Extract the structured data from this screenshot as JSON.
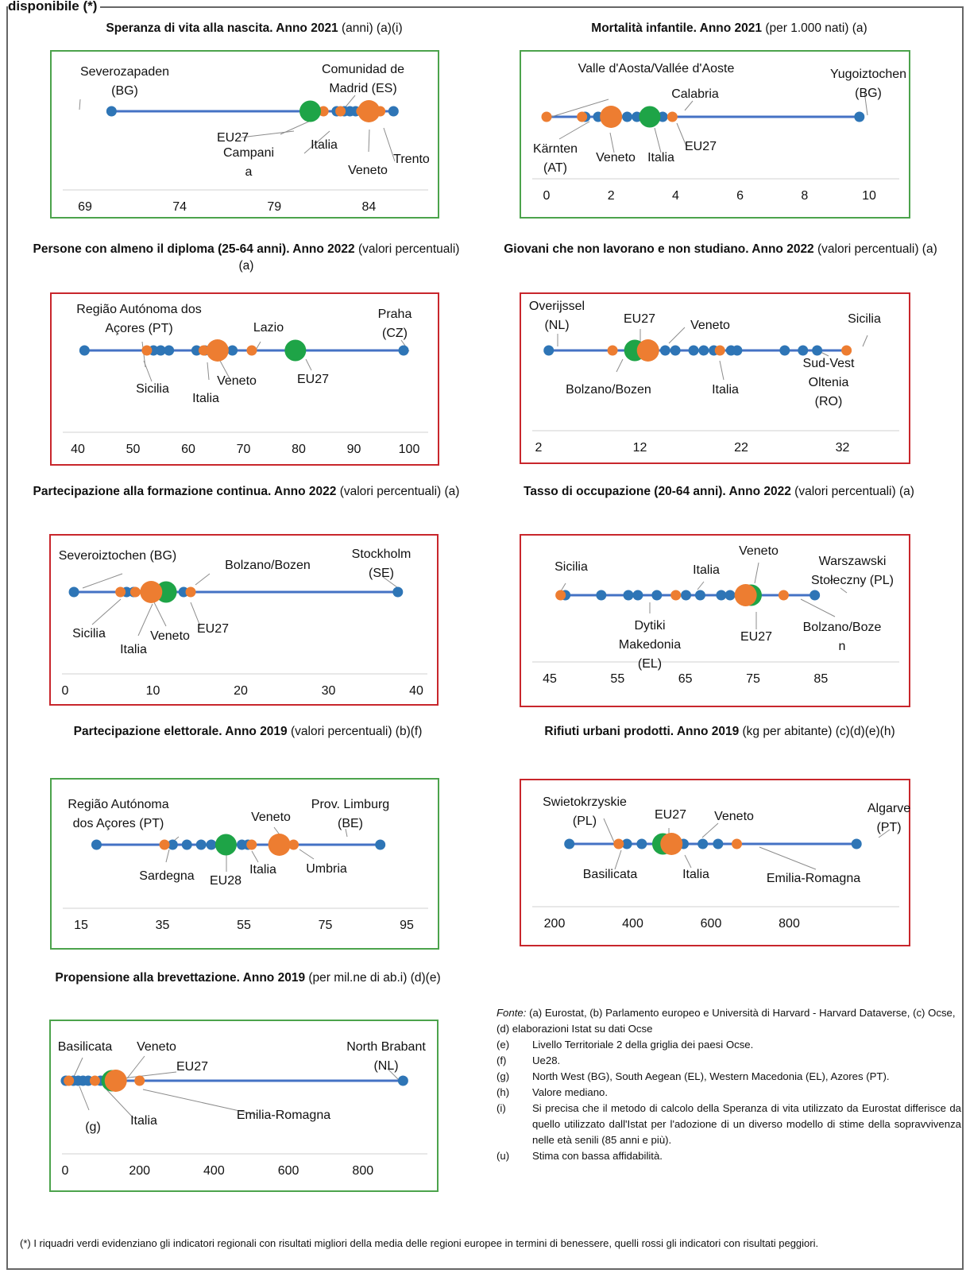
{
  "page": {
    "header": "disponibile (*)",
    "footnote": "(*) I riquadri verdi evidenziano gli indicatori regionali con risultati migliori della media delle regioni europee in termini di benessere, quelli rossi gli indicatori con risultati peggiori."
  },
  "sources": {
    "intro_label": "Fonte:",
    "intro": "(a) Eurostat, (b) Parlamento europeo e Università di Harvard - Harvard Dataverse, (c) Ocse, (d) elaborazioni Istat su dati Ocse",
    "notes": [
      {
        "key": "(e)",
        "text": "Livello Territoriale 2 della griglia dei paesi Ocse."
      },
      {
        "key": "(f)",
        "text": "Ue28."
      },
      {
        "key": "(g)",
        "text": "North West (BG), South Aegean (EL), Western Macedonia (EL), Azores (PT)."
      },
      {
        "key": "(h)",
        "text": "Valore mediano."
      },
      {
        "key": "(i)",
        "text": "Si precisa che il metodo di calcolo della Speranza di vita utilizzato da Eurostat differisce da quello utilizzato dall'Istat per l'adozione di un diverso modello di stime della sopravvivenza nelle età senili (85 anni e più)."
      },
      {
        "key": "(u)",
        "text": "Stima con bassa affidabilità."
      }
    ]
  },
  "colors": {
    "line": "#4472c4",
    "region": "#2e75b6",
    "italy": "#ed7d31",
    "eu": "#1ea447",
    "good_box": "#4ca34c",
    "bad_box": "#c8262c"
  },
  "chart_data": [
    {
      "type": "scatter",
      "title": "Speranza di vita alla nascita. Anno 2021",
      "subtitle": "(anni) (a)(i)",
      "box": "good",
      "xlim": [
        69,
        86
      ],
      "ticks": [
        69,
        74,
        79,
        84
      ],
      "points": [
        {
          "x": 70.4,
          "cat": "region"
        },
        {
          "x": 82.3,
          "cat": "region"
        },
        {
          "x": 82.7,
          "cat": "region"
        },
        {
          "x": 83.0,
          "cat": "region"
        },
        {
          "x": 83.3,
          "cat": "region"
        },
        {
          "x": 83.9,
          "cat": "region"
        },
        {
          "x": 85.3,
          "cat": "region"
        },
        {
          "x": 81.6,
          "cat": "italy"
        },
        {
          "x": 82.5,
          "cat": "italy"
        },
        {
          "x": 83.6,
          "cat": "italy"
        },
        {
          "x": 84.3,
          "cat": "italy"
        },
        {
          "x": 84.6,
          "cat": "italy"
        },
        {
          "x": 84.0,
          "cat": "italy_big"
        },
        {
          "x": 80.9,
          "cat": "eu"
        }
      ],
      "labels": [
        "Severozapaden\n(BG)",
        "Comunidad de\nMadrid (ES)",
        "EU27",
        "Campani\na",
        "Italia",
        "Veneto",
        "Trento"
      ]
    },
    {
      "type": "scatter",
      "title": "Mortalità infantile. Anno 2021",
      "subtitle": "(per 1.000 nati) (a)",
      "box": "good",
      "xlim": [
        0,
        10
      ],
      "ticks": [
        0,
        2,
        4,
        6,
        8,
        10
      ],
      "points": [
        {
          "x": 1.2,
          "cat": "region"
        },
        {
          "x": 1.6,
          "cat": "region"
        },
        {
          "x": 2.5,
          "cat": "region"
        },
        {
          "x": 2.8,
          "cat": "region"
        },
        {
          "x": 3.6,
          "cat": "region"
        },
        {
          "x": 9.7,
          "cat": "region"
        },
        {
          "x": 0.0,
          "cat": "italy"
        },
        {
          "x": 1.1,
          "cat": "italy"
        },
        {
          "x": 3.9,
          "cat": "italy"
        },
        {
          "x": 2.0,
          "cat": "italy_big"
        },
        {
          "x": 3.2,
          "cat": "eu"
        }
      ],
      "labels": [
        "Valle d'Aosta/Vallée d'Aoste",
        "Yugoiztochen\n(BG)",
        "Calabria",
        "Kärnten\n(AT)",
        "Veneto",
        "Italia",
        "EU27"
      ]
    },
    {
      "type": "scatter",
      "title": "Persone con almeno il diploma (25-64 anni). Anno 2022",
      "subtitle": "(valori percentuali) (a)",
      "box": "bad",
      "xlim": [
        40,
        100
      ],
      "ticks": [
        40,
        50,
        60,
        70,
        80,
        90,
        100
      ],
      "points": [
        {
          "x": 41.2,
          "cat": "region"
        },
        {
          "x": 53.7,
          "cat": "region"
        },
        {
          "x": 55.0,
          "cat": "region"
        },
        {
          "x": 56.5,
          "cat": "region"
        },
        {
          "x": 61.5,
          "cat": "region"
        },
        {
          "x": 63.0,
          "cat": "region"
        },
        {
          "x": 68.0,
          "cat": "region"
        },
        {
          "x": 99.0,
          "cat": "region"
        },
        {
          "x": 52.5,
          "cat": "italy"
        },
        {
          "x": 62.8,
          "cat": "italy"
        },
        {
          "x": 71.5,
          "cat": "italy"
        },
        {
          "x": 65.3,
          "cat": "italy_big"
        },
        {
          "x": 79.4,
          "cat": "eu"
        }
      ],
      "labels": [
        "Região Autónoma dos\nAçores (PT)",
        "Lazio",
        "Praha\n(CZ)",
        "Sicilia",
        "Veneto",
        "Italia",
        "EU27"
      ]
    },
    {
      "type": "scatter",
      "title": "Giovani che non lavorano e non studiano. Anno 2022",
      "subtitle": "(valori percentuali) (a)",
      "box": "bad",
      "xlim": [
        2,
        34
      ],
      "ticks": [
        2,
        12,
        22,
        32
      ],
      "points": [
        {
          "x": 3.0,
          "cat": "region"
        },
        {
          "x": 14.5,
          "cat": "region"
        },
        {
          "x": 15.5,
          "cat": "region"
        },
        {
          "x": 17.3,
          "cat": "region"
        },
        {
          "x": 18.3,
          "cat": "region"
        },
        {
          "x": 19.3,
          "cat": "region"
        },
        {
          "x": 21.0,
          "cat": "region"
        },
        {
          "x": 21.6,
          "cat": "region"
        },
        {
          "x": 26.3,
          "cat": "region"
        },
        {
          "x": 28.1,
          "cat": "region"
        },
        {
          "x": 29.5,
          "cat": "region"
        },
        {
          "x": 9.3,
          "cat": "italy"
        },
        {
          "x": 19.9,
          "cat": "italy"
        },
        {
          "x": 32.4,
          "cat": "italy"
        },
        {
          "x": 12.8,
          "cat": "italy_big"
        },
        {
          "x": 11.5,
          "cat": "eu"
        }
      ],
      "labels": [
        "Overijssel\n(NL)",
        "EU27",
        "Veneto",
        "Sicilia",
        "Sud-Vest\nOltenia\n(RO)",
        "Bolzano/Bozen",
        "Italia"
      ]
    },
    {
      "type": "scatter",
      "title": "Partecipazione alla formazione continua. Anno 2022",
      "subtitle": "(valori percentuali) (a)",
      "box": "bad",
      "xlim": [
        0,
        40
      ],
      "ticks": [
        0,
        10,
        20,
        30,
        40
      ],
      "points": [
        {
          "x": 1.0,
          "cat": "region"
        },
        {
          "x": 7.0,
          "cat": "region"
        },
        {
          "x": 7.8,
          "cat": "region"
        },
        {
          "x": 13.5,
          "cat": "region"
        },
        {
          "x": 37.9,
          "cat": "region"
        },
        {
          "x": 6.3,
          "cat": "italy"
        },
        {
          "x": 8.0,
          "cat": "italy"
        },
        {
          "x": 14.3,
          "cat": "italy"
        },
        {
          "x": 9.8,
          "cat": "italy_big"
        },
        {
          "x": 11.5,
          "cat": "eu"
        }
      ],
      "labels": [
        "Severoiztochen (BG)",
        "Bolzano/Bozen",
        "Stockholm\n(SE)",
        "Sicilia",
        "Veneto",
        "Italia",
        "EU27"
      ]
    },
    {
      "type": "scatter",
      "title": "Tasso di occupazione (20-64 anni). Anno 2022",
      "subtitle": "(valori percentuali) (a)",
      "box": "bad",
      "xlim": [
        45,
        90
      ],
      "ticks": [
        45,
        55,
        65,
        75,
        85
      ],
      "points": [
        {
          "x": 47.3,
          "cat": "region"
        },
        {
          "x": 52.6,
          "cat": "region"
        },
        {
          "x": 56.6,
          "cat": "region"
        },
        {
          "x": 58.0,
          "cat": "region"
        },
        {
          "x": 60.8,
          "cat": "region"
        },
        {
          "x": 65.1,
          "cat": "region"
        },
        {
          "x": 67.2,
          "cat": "region"
        },
        {
          "x": 70.3,
          "cat": "region"
        },
        {
          "x": 71.6,
          "cat": "region"
        },
        {
          "x": 84.1,
          "cat": "region"
        },
        {
          "x": 46.6,
          "cat": "italy"
        },
        {
          "x": 63.6,
          "cat": "italy"
        },
        {
          "x": 79.5,
          "cat": "italy"
        },
        {
          "x": 73.9,
          "cat": "italy_big"
        },
        {
          "x": 74.7,
          "cat": "eu"
        }
      ],
      "labels": [
        "Sicilia",
        "Italia",
        "Veneto",
        "Warszawski\nStołeczny (PL)",
        "Dytiki\nMakedonia\n(EL)",
        "EU27",
        "Bolzano/Boze\nn"
      ]
    },
    {
      "type": "scatter",
      "title": "Partecipazione elettorale. Anno 2019",
      "subtitle": "(valori percentuali) (b)(f)",
      "box": "good",
      "xlim": [
        15,
        95
      ],
      "ticks": [
        15,
        35,
        55,
        75,
        95
      ],
      "points": [
        {
          "x": 18.8,
          "cat": "region"
        },
        {
          "x": 37.5,
          "cat": "region"
        },
        {
          "x": 41.0,
          "cat": "region"
        },
        {
          "x": 44.5,
          "cat": "region"
        },
        {
          "x": 47.0,
          "cat": "region"
        },
        {
          "x": 54.5,
          "cat": "region"
        },
        {
          "x": 56.0,
          "cat": "region"
        },
        {
          "x": 88.5,
          "cat": "region"
        },
        {
          "x": 35.5,
          "cat": "italy"
        },
        {
          "x": 56.9,
          "cat": "italy"
        },
        {
          "x": 67.2,
          "cat": "italy"
        },
        {
          "x": 63.7,
          "cat": "italy_big"
        },
        {
          "x": 50.6,
          "cat": "eu"
        }
      ],
      "labels": [
        "Região Autónoma\ndos Açores (PT)",
        "Veneto",
        "Prov. Limburg\n(BE)",
        "Sardegna",
        "EU28",
        "Italia",
        "Umbria"
      ]
    },
    {
      "type": "scatter",
      "title": "Rifiuti urbani prodotti. Anno 2019",
      "subtitle": "(kg per abitante) (c)(d)(e)(h)",
      "box": "bad",
      "xlim": [
        200,
        1000
      ],
      "ticks": [
        200,
        400,
        600,
        800
      ],
      "points": [
        {
          "x": 238,
          "cat": "region"
        },
        {
          "x": 385,
          "cat": "region"
        },
        {
          "x": 423,
          "cat": "region"
        },
        {
          "x": 516,
          "cat": "region"
        },
        {
          "x": 530,
          "cat": "region"
        },
        {
          "x": 579,
          "cat": "region"
        },
        {
          "x": 618,
          "cat": "region"
        },
        {
          "x": 972,
          "cat": "region"
        },
        {
          "x": 364,
          "cat": "italy"
        },
        {
          "x": 513,
          "cat": "italy"
        },
        {
          "x": 666,
          "cat": "italy"
        },
        {
          "x": 499,
          "cat": "italy_big"
        },
        {
          "x": 477,
          "cat": "eu"
        }
      ],
      "labels": [
        "Swietokrzyskie\n(PL)",
        "EU27",
        "Veneto",
        "Algarve\n(PT)",
        "Basilicata",
        "Italia",
        "Emilia-Romagna"
      ]
    },
    {
      "type": "scatter",
      "title": "Propensione alla brevettazione. Anno 2019",
      "subtitle": "(per mil.ne di ab.i) (d)(e)",
      "box": "good",
      "xlim": [
        0,
        920
      ],
      "ticks": [
        0,
        200,
        400,
        600,
        800
      ],
      "points": [
        {
          "x": 2,
          "cat": "region"
        },
        {
          "x": 22,
          "cat": "region"
        },
        {
          "x": 35,
          "cat": "region"
        },
        {
          "x": 48,
          "cat": "region"
        },
        {
          "x": 62,
          "cat": "region"
        },
        {
          "x": 95,
          "cat": "region"
        },
        {
          "x": 908,
          "cat": "region"
        },
        {
          "x": 10,
          "cat": "italy"
        },
        {
          "x": 80,
          "cat": "italy"
        },
        {
          "x": 200,
          "cat": "italy"
        },
        {
          "x": 136,
          "cat": "italy_big"
        },
        {
          "x": 126,
          "cat": "eu"
        }
      ],
      "labels": [
        "Basilicata",
        "Veneto",
        "EU27",
        "North Brabant\n(NL)",
        "(g)",
        "Italia",
        "Emilia-Romagna"
      ]
    }
  ]
}
